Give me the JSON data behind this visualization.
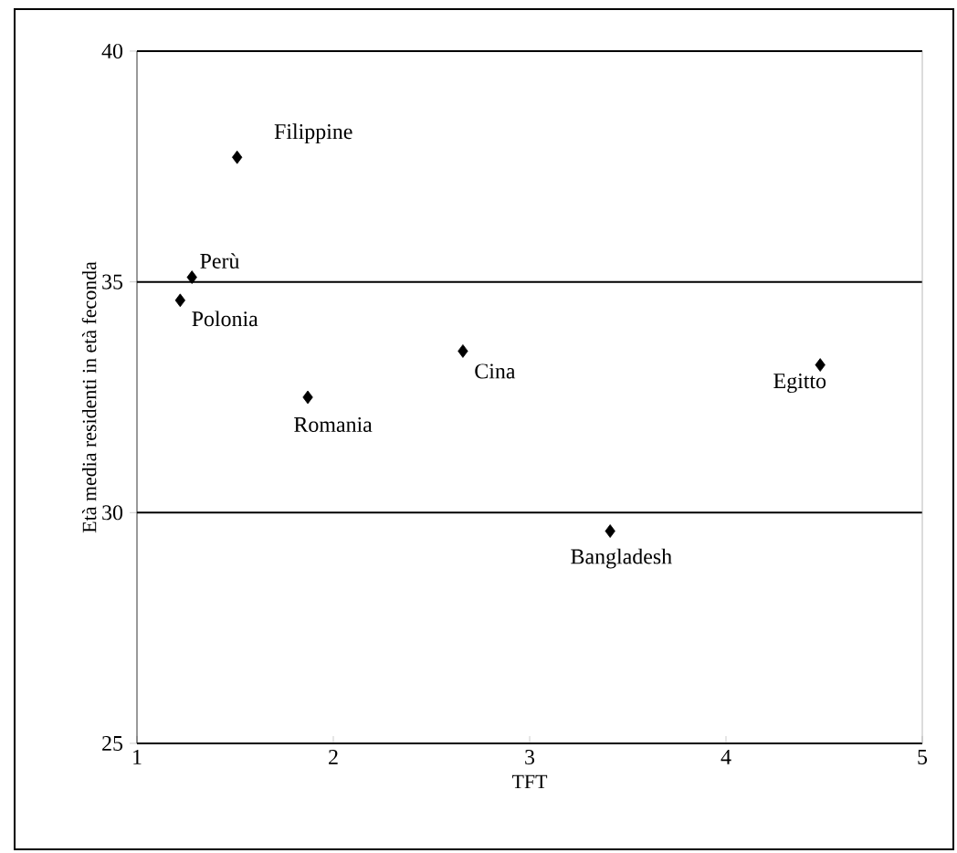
{
  "chart_data": {
    "type": "scatter",
    "xlabel": "TFT",
    "ylabel": "Età media residenti in età feconda",
    "x": [
      1.51,
      1.28,
      1.22,
      1.87,
      2.66,
      4.48,
      3.41
    ],
    "series": [
      {
        "color": "#000000",
        "values": [
          37.7,
          35.1,
          34.6,
          32.5,
          33.5,
          33.2,
          29.6
        ]
      }
    ],
    "annotations": [
      {
        "text": "Filippine",
        "x": 1.51,
        "y": 37.7
      },
      {
        "text": "Perù",
        "x": 1.28,
        "y": 35.1
      },
      {
        "text": "Polonia",
        "x": 1.22,
        "y": 34.6
      },
      {
        "text": "Romania",
        "x": 1.87,
        "y": 32.5
      },
      {
        "text": "Cina",
        "x": 2.66,
        "y": 33.5
      },
      {
        "text": "Egitto",
        "x": 4.48,
        "y": 33.2
      },
      {
        "text": "Bangladesh",
        "x": 3.41,
        "y": 29.6
      }
    ],
    "xlim": [
      1,
      5
    ],
    "ylim": [
      25,
      40
    ],
    "xticks": [
      1,
      2,
      3,
      4,
      5
    ],
    "yticks": [
      25,
      30,
      35,
      40
    ],
    "grid": "y",
    "marker": "diamond"
  }
}
